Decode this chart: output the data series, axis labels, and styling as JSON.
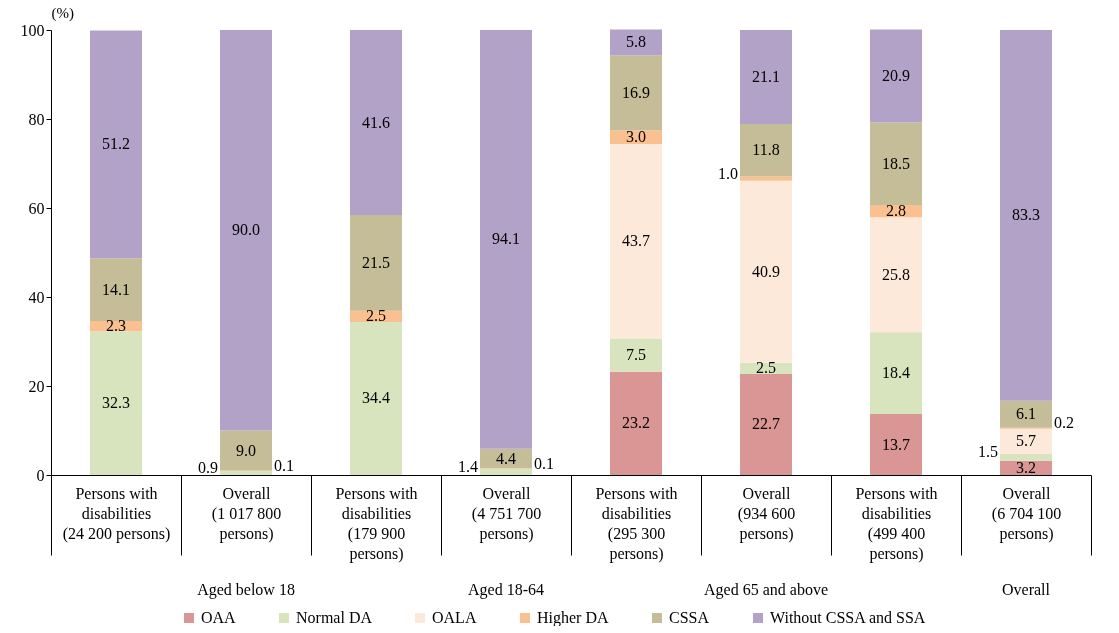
{
  "chart_data": {
    "type": "bar",
    "stacked": true,
    "ylabel": "(%)",
    "categories": [
      "Persons with disabilities (24 200 persons)",
      "Overall (1 017 800 persons)",
      "Persons with disabilities (179 900 persons)",
      "Overall (4 751 700 persons)",
      "Persons with disabilities (295 300 persons)",
      "Overall (934 600 persons)",
      "Persons with disabilities (499 400 persons)",
      "Overall (6 704 100 persons)"
    ],
    "annotations": [
      "Aged below 18",
      "Aged 18-64",
      "Aged 65 and above",
      "Overall"
    ],
    "ylim": [
      0,
      100
    ],
    "yticks": [
      0,
      20,
      40,
      60,
      80,
      100
    ],
    "grid": false,
    "legend": "bottom",
    "series": [
      {
        "name": "OAA",
        "color": "#d99694",
        "values": [
          null,
          null,
          null,
          null,
          23.2,
          22.7,
          13.7,
          3.2
        ],
        "value_labels": [
          null,
          null,
          null,
          null,
          "23.2",
          "22.7",
          "13.7",
          "3.2"
        ]
      },
      {
        "name": "Normal DA",
        "color": "#d7e4bd",
        "values": [
          32.3,
          0.9,
          34.4,
          1.4,
          7.5,
          2.5,
          18.4,
          1.5
        ],
        "value_labels": [
          "32.3",
          "0.9",
          "34.4",
          "1.4",
          "7.5",
          "2.5",
          "18.4",
          "1.5"
        ]
      },
      {
        "name": "OALA",
        "color": "#fde9d9",
        "values": [
          null,
          null,
          null,
          null,
          43.7,
          40.9,
          25.8,
          5.7
        ],
        "value_labels": [
          null,
          null,
          null,
          null,
          "43.7",
          "40.9",
          "25.8",
          "5.7"
        ]
      },
      {
        "name": "Higher DA",
        "color": "#fac090",
        "values": [
          2.3,
          0.1,
          2.5,
          0.1,
          3.0,
          1.0,
          2.8,
          0.2
        ],
        "value_labels": [
          "2.3",
          "0.1",
          "2.5",
          "0.1",
          "3.0",
          "1.0",
          "2.8",
          "0.2"
        ]
      },
      {
        "name": "CSSA",
        "color": "#c4bd97",
        "values": [
          14.1,
          9.0,
          21.5,
          4.4,
          16.9,
          11.8,
          18.5,
          6.1
        ],
        "value_labels": [
          "14.1",
          "9.0",
          "21.5",
          "4.4",
          "16.9",
          "11.8",
          "18.5",
          "6.1"
        ]
      },
      {
        "name": "Without CSSA and SSA",
        "color": "#b3a2c7",
        "values": [
          51.2,
          90.0,
          41.6,
          94.1,
          5.8,
          21.1,
          20.9,
          83.3
        ],
        "value_labels": [
          "51.2",
          "90.0",
          "41.6",
          "94.1",
          "5.8",
          "21.1",
          "20.9",
          "83.3"
        ]
      }
    ]
  }
}
